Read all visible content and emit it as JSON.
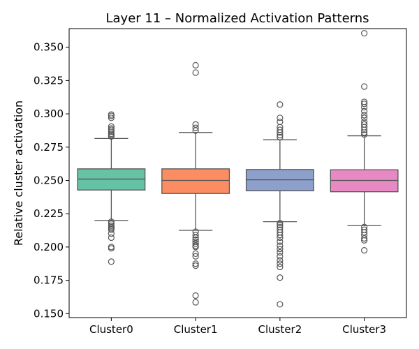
{
  "chart_data": {
    "type": "box",
    "title": "Layer 11 – Normalized Activation Patterns",
    "xlabel": "",
    "ylabel": "Relative cluster activation",
    "ylim": [
      0.147,
      0.364
    ],
    "yticks": [
      "0.150",
      "0.175",
      "0.200",
      "0.225",
      "0.250",
      "0.275",
      "0.300",
      "0.325",
      "0.350"
    ],
    "grid": false,
    "categories": [
      "Cluster0",
      "Cluster1",
      "Cluster2",
      "Cluster3"
    ],
    "colors": [
      "#66c2a5",
      "#fc8d62",
      "#8da0cb",
      "#e78ac3"
    ],
    "edge_color": "#555555",
    "boxes": [
      {
        "name": "Cluster0",
        "q1": 0.2428,
        "median": 0.251,
        "q3": 0.2587,
        "whisker_low": 0.22,
        "whisker_high": 0.2815,
        "outliers": [
          0.2995,
          0.2985,
          0.297,
          0.2905,
          0.289,
          0.288,
          0.2865,
          0.285,
          0.284,
          0.283,
          0.219,
          0.2175,
          0.216,
          0.215,
          0.214,
          0.213,
          0.21,
          0.207,
          0.2,
          0.199,
          0.189
        ]
      },
      {
        "name": "Cluster1",
        "q1": 0.2402,
        "median": 0.25,
        "q3": 0.2587,
        "whisker_low": 0.2125,
        "whisker_high": 0.286,
        "outliers": [
          0.3365,
          0.331,
          0.292,
          0.2895,
          0.2875,
          0.2115,
          0.209,
          0.207,
          0.2055,
          0.204,
          0.2025,
          0.201,
          0.2,
          0.195,
          0.193,
          0.1875,
          0.186,
          0.1635,
          0.1585
        ]
      },
      {
        "name": "Cluster2",
        "q1": 0.2422,
        "median": 0.2505,
        "q3": 0.2582,
        "whisker_low": 0.219,
        "whisker_high": 0.2805,
        "outliers": [
          0.307,
          0.297,
          0.294,
          0.29,
          0.288,
          0.286,
          0.284,
          0.2825,
          0.218,
          0.2165,
          0.215,
          0.213,
          0.211,
          0.209,
          0.207,
          0.204,
          0.201,
          0.1985,
          0.196,
          0.193,
          0.19,
          0.1875,
          0.185,
          0.177,
          0.157
        ]
      },
      {
        "name": "Cluster3",
        "q1": 0.2415,
        "median": 0.25,
        "q3": 0.258,
        "whisker_low": 0.216,
        "whisker_high": 0.2835,
        "outliers": [
          0.3605,
          0.3205,
          0.309,
          0.3075,
          0.305,
          0.302,
          0.299,
          0.297,
          0.294,
          0.292,
          0.29,
          0.288,
          0.286,
          0.2845,
          0.215,
          0.213,
          0.211,
          0.209,
          0.2065,
          0.205,
          0.1975
        ]
      }
    ]
  }
}
